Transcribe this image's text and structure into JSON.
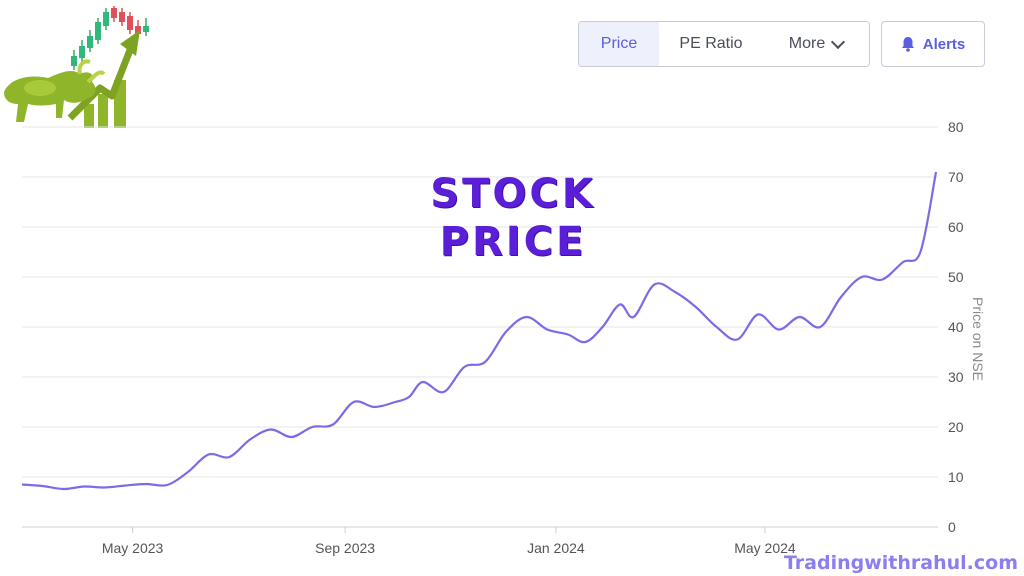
{
  "toolbar": {
    "tabs": [
      {
        "label": "Price",
        "active": true
      },
      {
        "label": "PE Ratio",
        "active": false
      },
      {
        "label": "More",
        "active": false
      }
    ],
    "alerts_label": "Alerts",
    "alerts_icon": "bell-icon",
    "more_icon": "chevron-down-icon"
  },
  "overlay_title": "STOCK PRICE",
  "watermark": "Tradingwithrahul.com",
  "colors": {
    "line": "#7b6be6",
    "accent": "#5b5ee0",
    "title": "#5a1fd6",
    "grid": "#e6e6e6"
  },
  "chart_data": {
    "type": "line",
    "title": "",
    "xlabel": "",
    "ylabel": "Price on NSE",
    "ylim": [
      0,
      80
    ],
    "yticks": [
      0,
      10,
      20,
      30,
      40,
      50,
      60,
      70,
      80
    ],
    "xticks": [
      "May 2023",
      "Sep 2023",
      "Jan 2024",
      "May 2024"
    ],
    "grid": true,
    "series": [
      {
        "x": [
          "2023-02-26",
          "2023-03-10",
          "2023-03-22",
          "2023-04-03",
          "2023-04-15",
          "2023-04-27",
          "2023-05-09",
          "2023-05-21",
          "2023-06-02",
          "2023-06-14",
          "2023-06-26",
          "2023-07-08",
          "2023-07-20",
          "2023-08-01",
          "2023-08-13",
          "2023-08-25",
          "2023-09-06",
          "2023-09-18",
          "2023-09-30",
          "2023-10-08",
          "2023-10-16",
          "2023-10-28",
          "2023-11-09",
          "2023-11-21",
          "2023-12-03",
          "2023-12-15",
          "2023-12-27",
          "2024-01-08",
          "2024-01-18",
          "2024-01-28",
          "2024-02-07",
          "2024-02-15",
          "2024-02-27",
          "2024-03-10",
          "2024-03-22",
          "2024-04-03",
          "2024-04-15",
          "2024-04-27",
          "2024-05-09",
          "2024-05-21",
          "2024-06-02",
          "2024-06-14",
          "2024-06-26",
          "2024-07-08",
          "2024-07-20",
          "2024-07-30",
          "2024-08-08"
        ],
        "y": [
          8.5,
          8.2,
          7.6,
          8.1,
          7.9,
          8.3,
          8.6,
          8.4,
          11,
          14.5,
          14,
          17.5,
          19.5,
          18,
          20,
          20.5,
          25,
          24,
          25,
          26,
          29,
          27,
          32,
          33,
          39,
          42,
          39.5,
          38.5,
          37,
          40,
          44.5,
          42,
          48.5,
          47,
          44,
          40,
          37.5,
          42.5,
          39.5,
          42,
          40,
          46,
          50,
          49.5,
          53,
          55,
          71
        ]
      }
    ]
  }
}
